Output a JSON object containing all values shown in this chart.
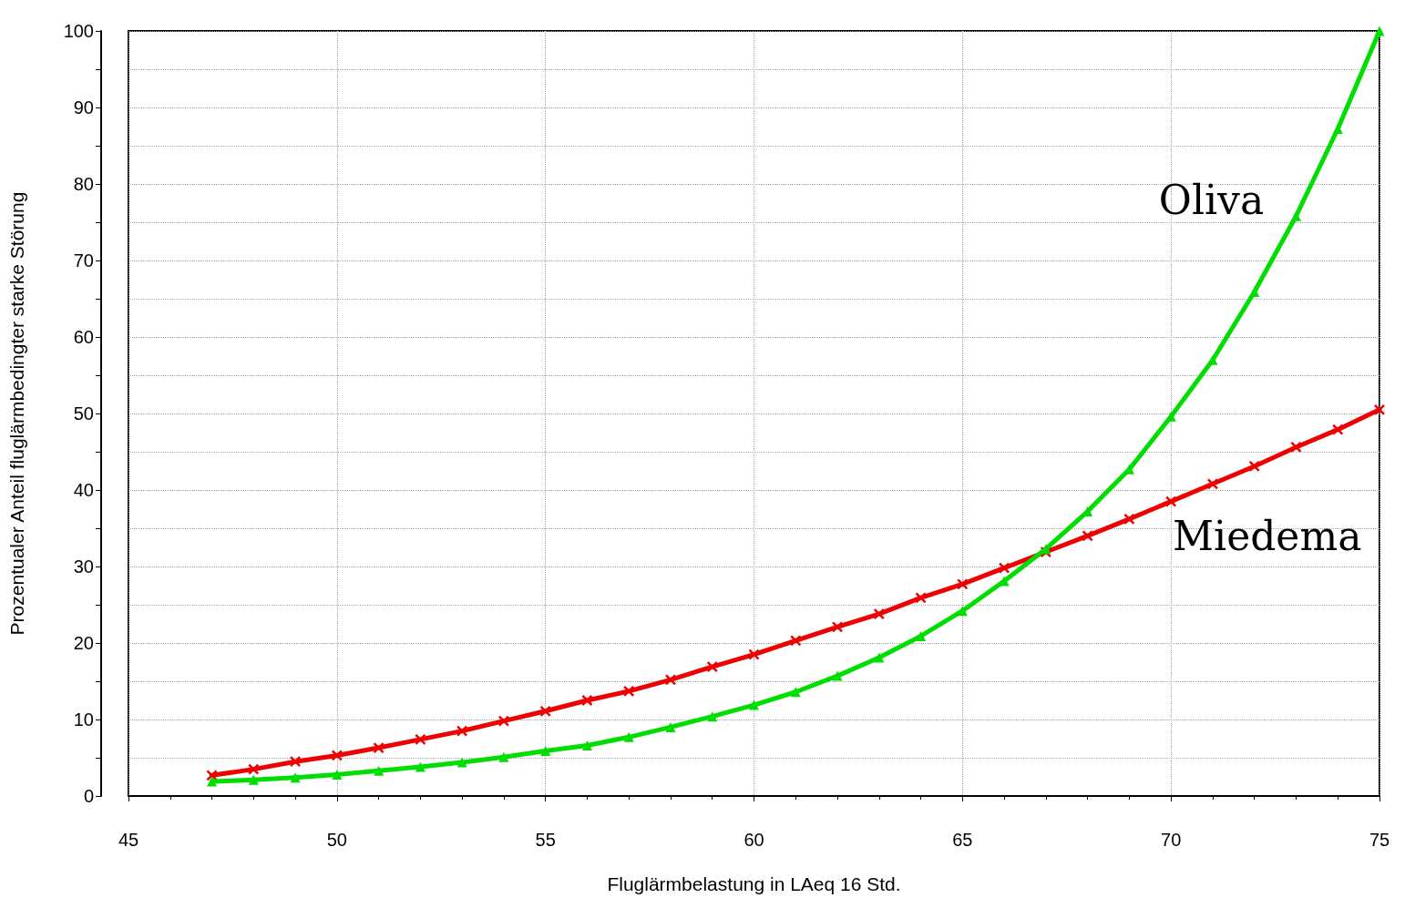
{
  "chart_data": {
    "type": "line",
    "xlabel": "Fluglärmbelastung in LAeq 16 Std.",
    "ylabel": "Prozentualer Anteil fluglärmbedingter starke Störung",
    "x": [
      47,
      48,
      49,
      50,
      51,
      52,
      53,
      54,
      55,
      56,
      57,
      58,
      59,
      60,
      61,
      62,
      63,
      64,
      65,
      66,
      67,
      68,
      69,
      70,
      71,
      72,
      73,
      74,
      75
    ],
    "series": [
      {
        "name": "Oliva",
        "color": "#00dd00",
        "marker": "triangle",
        "values": [
          1.9,
          2.1,
          2.4,
          2.8,
          3.3,
          3.8,
          4.4,
          5.1,
          5.9,
          6.6,
          7.7,
          9.0,
          10.4,
          11.9,
          13.6,
          15.7,
          18.1,
          20.9,
          24.2,
          28.1,
          32.3,
          37.2,
          42.7,
          49.6,
          57.0,
          65.9,
          75.8,
          87.2,
          100
        ]
      },
      {
        "name": "Miedema",
        "color": "#ee0000",
        "marker": "cross",
        "values": [
          2.7,
          3.5,
          4.5,
          5.3,
          6.3,
          7.4,
          8.5,
          9.8,
          11.1,
          12.5,
          13.7,
          15.2,
          16.9,
          18.5,
          20.3,
          22.1,
          23.8,
          25.9,
          27.7,
          29.8,
          31.9,
          34.0,
          36.2,
          38.5,
          40.8,
          43.1,
          45.6,
          47.9,
          50.5
        ]
      }
    ],
    "xlim": [
      45,
      75
    ],
    "xticks": [
      45,
      50,
      55,
      60,
      65,
      70,
      75
    ],
    "ylim": [
      0,
      100
    ],
    "yticks": [
      0,
      {
        "value": 5,
        "label": null
      },
      10,
      {
        "value": 15,
        "label": null
      },
      20,
      {
        "value": 25,
        "label": null
      },
      30,
      {
        "value": 35,
        "label": null
      },
      40,
      {
        "value": 45,
        "label": null
      },
      50,
      {
        "value": 55,
        "label": null
      },
      60,
      {
        "value": 65,
        "label": null
      },
      70,
      {
        "value": 75,
        "label": null
      },
      80,
      {
        "value": 85,
        "label": null
      },
      90,
      {
        "value": 95,
        "label": null
      },
      100
    ],
    "grid": true,
    "legend": false,
    "line_style": "solid"
  }
}
